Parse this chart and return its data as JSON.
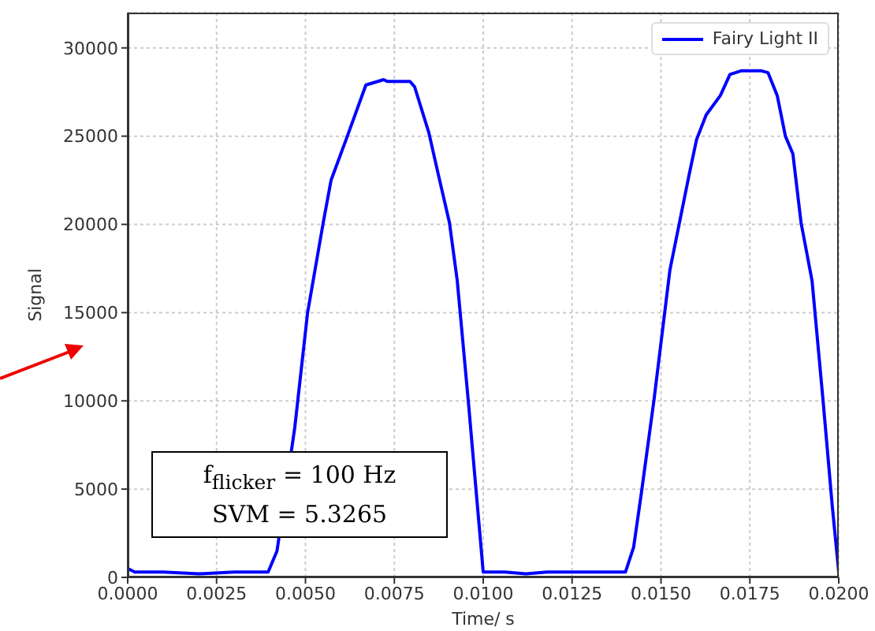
{
  "chart_data": {
    "type": "line",
    "xlabel": "Time/ s",
    "ylabel": "Signal",
    "x": [
      0,
      0.0002,
      0.001,
      0.002,
      0.003,
      0.00395,
      0.0042,
      0.0047,
      0.00506,
      0.0055,
      0.00572,
      0.00616,
      0.0067,
      0.0072,
      0.0073,
      0.00794,
      0.00807,
      0.00847,
      0.00874,
      0.00905,
      0.00927,
      0.00958,
      0.0098,
      0.01,
      0.0106,
      0.0112,
      0.0118,
      0.013,
      0.014,
      0.01423,
      0.01445,
      0.0148,
      0.01525,
      0.01579,
      0.016,
      0.01627,
      0.01667,
      0.01694,
      0.01725,
      0.01783,
      0.01801,
      0.01827,
      0.0185,
      0.01871,
      0.01894,
      0.01925,
      0.01956,
      0.01982,
      0.02
    ],
    "series": [
      {
        "name": "Fairy Light II",
        "color": "#0000ff",
        "values": [
          500,
          300,
          300,
          200,
          300,
          300,
          1500,
          8500,
          15000,
          20100,
          22500,
          24900,
          27900,
          28200,
          28100,
          28100,
          27800,
          25200,
          22800,
          20100,
          16800,
          10000,
          4900,
          300,
          300,
          200,
          300,
          300,
          300,
          1700,
          4800,
          10000,
          17400,
          22800,
          24800,
          26200,
          27300,
          28500,
          28700,
          28700,
          28600,
          27300,
          25000,
          24000,
          20100,
          16800,
          10000,
          4000,
          300
        ]
      }
    ],
    "xlim": [
      0,
      0.02
    ],
    "ylim": [
      0,
      32000
    ],
    "xticks": [
      {
        "value": 0,
        "label": "0.0000"
      },
      {
        "value": 0.0025,
        "label": "0.0025"
      },
      {
        "value": 0.005,
        "label": "0.0050"
      },
      {
        "value": 0.0075,
        "label": "0.0075"
      },
      {
        "value": 0.01,
        "label": "0.0100"
      },
      {
        "value": 0.0125,
        "label": "0.0125"
      },
      {
        "value": 0.015,
        "label": "0.0150"
      },
      {
        "value": 0.0175,
        "label": "0.0175"
      },
      {
        "value": 0.02,
        "label": "0.0200"
      }
    ],
    "yticks": [
      0,
      5000,
      10000,
      15000,
      20000,
      25000,
      30000
    ],
    "grid": true,
    "legend": "top right",
    "marker": "none",
    "line_style": "solid",
    "annotations": [
      "f$_{flicker}$ = 100 Hz",
      "SVM = 5.3265"
    ]
  }
}
